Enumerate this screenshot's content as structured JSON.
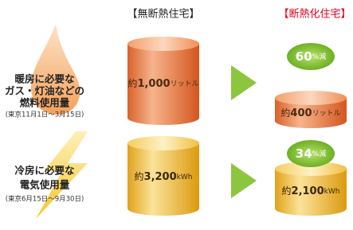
{
  "header": {
    "before": "【無断熱住宅】",
    "after": "【断熱化住宅】"
  },
  "rows": [
    {
      "label": [
        "暖房に必要な",
        "ガス・灯油などの",
        "燃料使用量"
      ],
      "period": "(東京11月1日〜3月15日)",
      "before": {
        "prefix": "約",
        "amount": "1,000",
        "unit": "リットル"
      },
      "reduction": {
        "amount": "60",
        "unit": "%減"
      },
      "after": {
        "prefix": "約",
        "amount": "400",
        "unit": "リットル"
      }
    },
    {
      "label": [
        "冷房に必要な",
        "電気使用量"
      ],
      "period": "(東京6月15日〜9月30日)",
      "before": {
        "prefix": "約",
        "amount": "3,200",
        "unit": "kWh"
      },
      "reduction": {
        "amount": "34",
        "unit": "%減"
      },
      "after": {
        "prefix": "約",
        "amount": "2,100",
        "unit": "kWh"
      }
    }
  ]
}
